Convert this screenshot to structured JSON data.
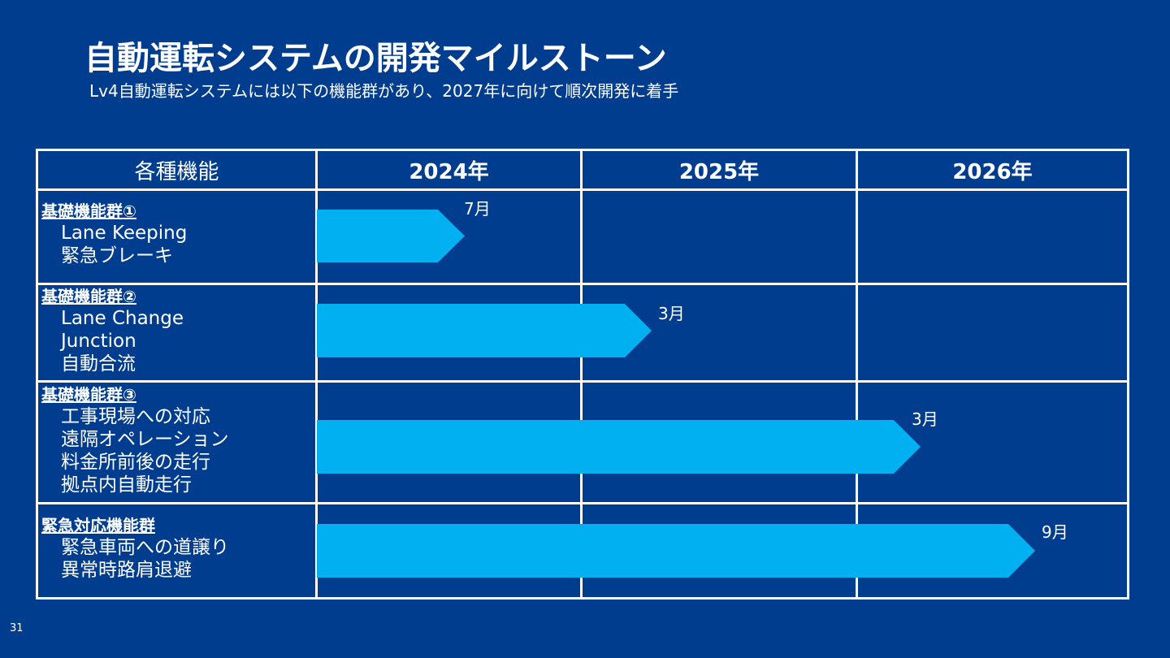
{
  "slide": {
    "title": "自動運転システムの開発マイルストーン",
    "subtitle": "Lv4自動運転システムには以下の機能群があり、2027年に向けて順次開発に着手",
    "page_number": "31"
  },
  "table": {
    "header": {
      "function_col": "各種機能",
      "years": [
        "2024年",
        "2025年",
        "2026年"
      ]
    },
    "groups": [
      {
        "title": "基礎機能群①",
        "items": [
          "Lane Keeping",
          "緊急ブレーキ"
        ],
        "milestone": "7月"
      },
      {
        "title": "基礎機能群②",
        "items": [
          "Lane Change",
          "Junction",
          "自動合流"
        ],
        "milestone": "3月"
      },
      {
        "title": "基礎機能群③",
        "items": [
          "工事現場への対応",
          "遠隔オペレーション",
          "料金所前後の走行",
          "拠点内自動走行"
        ],
        "milestone": "3月"
      },
      {
        "title": "緊急対応機能群",
        "items": [
          "緊急車両への道譲り",
          "異常時路肩退避"
        ],
        "milestone": "9月"
      }
    ]
  },
  "colors": {
    "background": "#003d8f",
    "bar": "#00b0f0",
    "grid": "#ffffff",
    "text": "#ffffff"
  }
}
